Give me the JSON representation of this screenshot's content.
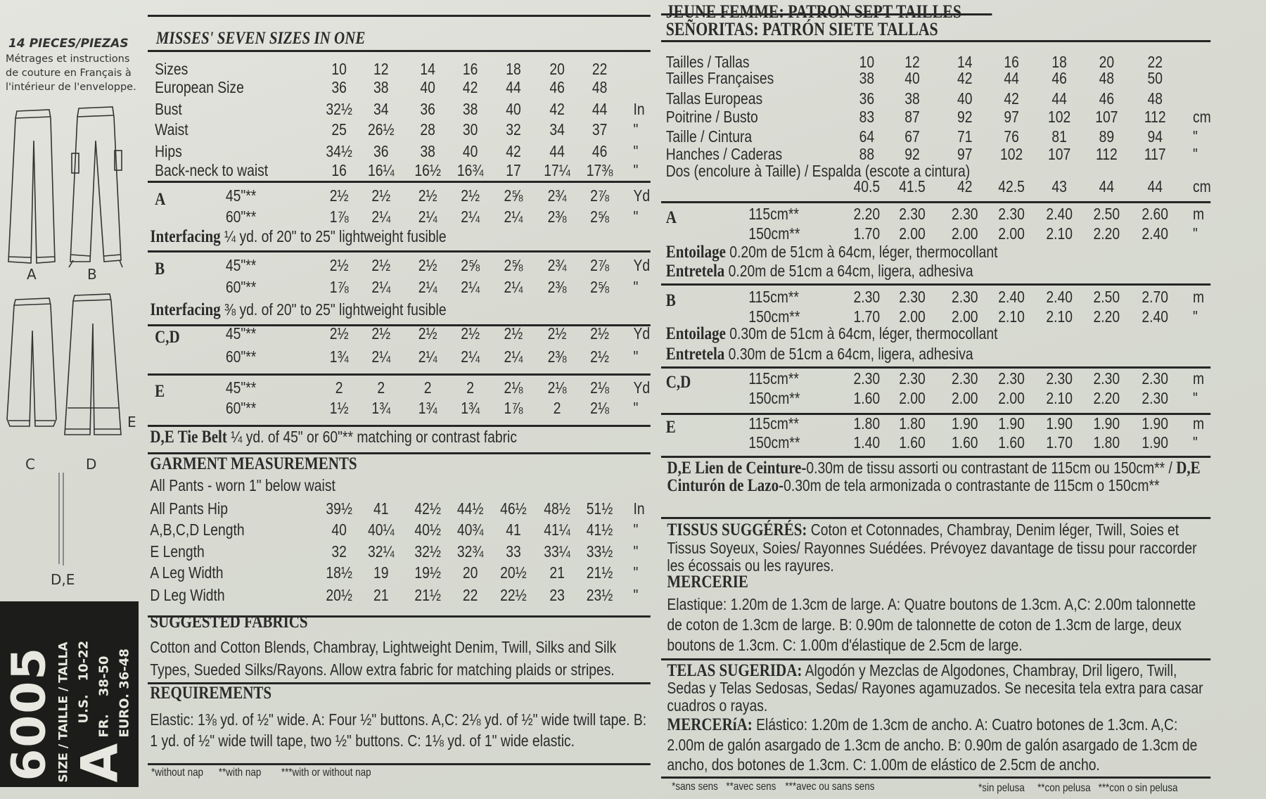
{
  "left_panel": {
    "pieces": "14 PIECES/PIEZAS",
    "note_lines": [
      "Métrages et instructions",
      "de couture en Français à",
      "l'intérieur de l'enveloppe."
    ],
    "view_labels": {
      "a": "A",
      "b": "B",
      "c": "C",
      "d": "D",
      "e": "E",
      "de": "D,E"
    },
    "pattern_number": "6005",
    "size_label": "SIZE / TAILLE / TALLA",
    "size_code": "A",
    "size_ranges": [
      {
        "label": "U.S.",
        "range": "10-22"
      },
      {
        "label": "FR.",
        "range": "38-50"
      },
      {
        "label": "EURO.",
        "range": "36-48"
      }
    ]
  },
  "english": {
    "title": "MISSES' SEVEN SIZES IN ONE",
    "body_measurements": [
      {
        "label": "Sizes",
        "values": [
          "10",
          "12",
          "14",
          "16",
          "18",
          "20",
          "22"
        ],
        "unit": ""
      },
      {
        "label": "European Size",
        "values": [
          "36",
          "38",
          "40",
          "42",
          "44",
          "46",
          "48"
        ],
        "unit": ""
      },
      {
        "label": "Bust",
        "values": [
          "32½",
          "34",
          "36",
          "38",
          "40",
          "42",
          "44"
        ],
        "unit": "In"
      },
      {
        "label": "Waist",
        "values": [
          "25",
          "26½",
          "28",
          "30",
          "32",
          "34",
          "37"
        ],
        "unit": "\""
      },
      {
        "label": "Hips",
        "values": [
          "34½",
          "36",
          "38",
          "40",
          "42",
          "44",
          "46"
        ],
        "unit": "\""
      },
      {
        "label": "Back-neck to waist",
        "values": [
          "16",
          "16¼",
          "16½",
          "16¾",
          "17",
          "17¼",
          "17⅜"
        ],
        "unit": "\""
      }
    ],
    "yardage": [
      {
        "view": "A",
        "rows": [
          {
            "width": "45\"**",
            "values": [
              "2½",
              "2½",
              "2½",
              "2½",
              "2⅝",
              "2¾",
              "2⅞"
            ],
            "unit": "Yd"
          },
          {
            "width": "60\"**",
            "values": [
              "1⅞",
              "2¼",
              "2¼",
              "2¼",
              "2¼",
              "2⅜",
              "2⅝"
            ],
            "unit": "\""
          }
        ],
        "interfacing": {
          "label": "Interfacing",
          "text": "¼ yd. of 20\" to 25\" lightweight fusible"
        }
      },
      {
        "view": "B",
        "rows": [
          {
            "width": "45\"**",
            "values": [
              "2½",
              "2½",
              "2½",
              "2⅝",
              "2⅝",
              "2¾",
              "2⅞"
            ],
            "unit": "Yd"
          },
          {
            "width": "60\"**",
            "values": [
              "1⅞",
              "2¼",
              "2¼",
              "2¼",
              "2¼",
              "2⅜",
              "2⅝"
            ],
            "unit": "\""
          }
        ],
        "interfacing": {
          "label": "Interfacing",
          "text": "⅜ yd. of 20\" to 25\" lightweight fusible"
        }
      },
      {
        "view": "C,D",
        "rows": [
          {
            "width": "45\"**",
            "values": [
              "2½",
              "2½",
              "2½",
              "2½",
              "2½",
              "2½",
              "2½"
            ],
            "unit": "Yd"
          },
          {
            "width": "60\"**",
            "values": [
              "1¾",
              "2¼",
              "2¼",
              "2¼",
              "2¼",
              "2⅜",
              "2½"
            ],
            "unit": "\""
          }
        ]
      },
      {
        "view": "E",
        "rows": [
          {
            "width": "45\"**",
            "values": [
              "2",
              "2",
              "2",
              "2",
              "2⅛",
              "2⅛",
              "2⅛"
            ],
            "unit": "Yd"
          },
          {
            "width": "60\"**",
            "values": [
              "1½",
              "1¾",
              "1¾",
              "1¾",
              "1⅞",
              "2",
              "2⅛"
            ],
            "unit": "\""
          }
        ]
      }
    ],
    "tie_belt": {
      "label": "D,E Tie Belt",
      "text": "¼ yd. of 45\" or 60\"** matching or contrast fabric"
    },
    "garment_measurements": {
      "title": "GARMENT MEASUREMENTS",
      "note": "All Pants - worn 1\" below waist",
      "rows": [
        {
          "label": "All Pants Hip",
          "values": [
            "39½",
            "41",
            "42½",
            "44½",
            "46½",
            "48½",
            "51½"
          ],
          "unit": "In"
        },
        {
          "label": "A,B,C,D Length",
          "values": [
            "40",
            "40¼",
            "40½",
            "40¾",
            "41",
            "41¼",
            "41½"
          ],
          "unit": "\""
        },
        {
          "label": "E Length",
          "values": [
            "32",
            "32¼",
            "32½",
            "32¾",
            "33",
            "33¼",
            "33½"
          ],
          "unit": "\""
        },
        {
          "label": "A Leg Width",
          "values": [
            "18½",
            "19",
            "19½",
            "20",
            "20½",
            "21",
            "21½"
          ],
          "unit": "\""
        },
        {
          "label": "D Leg Width",
          "values": [
            "20½",
            "21",
            "21½",
            "22",
            "22½",
            "23",
            "23½"
          ],
          "unit": "\""
        }
      ]
    },
    "suggested_fabrics": {
      "title": "SUGGESTED FABRICS",
      "text": "Cotton and Cotton Blends, Chambray, Lightweight Denim, Twill, Silks and Silk Types, Sueded Silks/Rayons. Allow extra fabric for matching plaids or stripes."
    },
    "requirements": {
      "title": "REQUIREMENTS",
      "text": "Elastic: 1⅜ yd. of ½\" wide. A: Four ½\" buttons. A,C: 2⅛ yd. of ½\" wide twill tape. B: 1 yd. of ½\" wide twill tape, two ½\" buttons. C: 1⅛ yd. of 1\" wide elastic."
    },
    "footnotes": [
      "*without nap",
      "**with nap",
      "***with or without nap"
    ]
  },
  "french_spanish": {
    "title_fr": "JEUNE FEMME: PATRON SEPT TAILLES",
    "title_es": "SEÑORITAS: PATRÓN SIETE TALLAS",
    "body_measurements": [
      {
        "label": "Tailles / Tallas",
        "values": [
          "10",
          "12",
          "14",
          "16",
          "18",
          "20",
          "22"
        ],
        "unit": ""
      },
      {
        "label": "Tailles Françaises",
        "values": [
          "38",
          "40",
          "42",
          "44",
          "46",
          "48",
          "50"
        ],
        "unit": ""
      },
      {
        "label": "Tallas Europeas",
        "values": [
          "36",
          "38",
          "40",
          "42",
          "44",
          "46",
          "48"
        ],
        "unit": ""
      },
      {
        "label": "Poitrine / Busto",
        "values": [
          "83",
          "87",
          "92",
          "97",
          "102",
          "107",
          "112"
        ],
        "unit": "cm"
      },
      {
        "label": "Taille / Cintura",
        "values": [
          "64",
          "67",
          "71",
          "76",
          "81",
          "89",
          "94"
        ],
        "unit": "\""
      },
      {
        "label": "Hanches / Caderas",
        "values": [
          "88",
          "92",
          "97",
          "102",
          "107",
          "112",
          "117"
        ],
        "unit": "\""
      }
    ],
    "back_length": {
      "label": "Dos (encolure à Taille) / Espalda (escote a cintura)",
      "values": [
        "40.5",
        "41.5",
        "42",
        "42.5",
        "43",
        "44",
        "44"
      ],
      "unit": "cm"
    },
    "yardage": [
      {
        "view": "A",
        "rows": [
          {
            "width": "115cm**",
            "values": [
              "2.20",
              "2.30",
              "2.30",
              "2.30",
              "2.40",
              "2.50",
              "2.60"
            ],
            "unit": "m"
          },
          {
            "width": "150cm**",
            "values": [
              "1.70",
              "2.00",
              "2.00",
              "2.00",
              "2.10",
              "2.20",
              "2.40"
            ],
            "unit": "\""
          }
        ],
        "interfacing": [
          {
            "label": "Entoilage",
            "text": "0.20m de 51cm à 64cm, léger, thermocollant"
          },
          {
            "label": "Entretela",
            "text": "0.20m de 51cm a 64cm, ligera, adhesiva"
          }
        ]
      },
      {
        "view": "B",
        "rows": [
          {
            "width": "115cm**",
            "values": [
              "2.30",
              "2.30",
              "2.30",
              "2.40",
              "2.40",
              "2.50",
              "2.70"
            ],
            "unit": "m"
          },
          {
            "width": "150cm**",
            "values": [
              "1.70",
              "2.00",
              "2.00",
              "2.10",
              "2.10",
              "2.20",
              "2.40"
            ],
            "unit": "\""
          }
        ],
        "interfacing": [
          {
            "label": "Entoilage",
            "text": "0.30m de 51cm à 64cm, léger, thermocollant"
          },
          {
            "label": "Entretela",
            "text": "0.30m de 51cm a 64cm, ligera, adhesiva"
          }
        ]
      },
      {
        "view": "C,D",
        "rows": [
          {
            "width": "115cm**",
            "values": [
              "2.30",
              "2.30",
              "2.30",
              "2.30",
              "2.30",
              "2.30",
              "2.30"
            ],
            "unit": "m"
          },
          {
            "width": "150cm**",
            "values": [
              "1.60",
              "2.00",
              "2.00",
              "2.00",
              "2.10",
              "2.20",
              "2.30"
            ],
            "unit": "\""
          }
        ]
      },
      {
        "view": "E",
        "rows": [
          {
            "width": "115cm**",
            "values": [
              "1.80",
              "1.80",
              "1.90",
              "1.90",
              "1.90",
              "1.90",
              "1.90"
            ],
            "unit": "m"
          },
          {
            "width": "150cm**",
            "values": [
              "1.40",
              "1.60",
              "1.60",
              "1.60",
              "1.70",
              "1.80",
              "1.90"
            ],
            "unit": "\""
          }
        ]
      }
    ],
    "tie_belt": [
      {
        "bold": "D,E Lien de Ceinture-",
        "text": "0.30m de tissu assorti ou contrastant de 115cm ou 150cm** / "
      },
      {
        "bold": "D,E Cinturón de Lazo-",
        "text": "0.30m de tela armonizada o contrastante de 115cm o 150cm**"
      }
    ],
    "tissus": {
      "title": "TISSUS SUGGÉRÉS:",
      "text": "Coton et Cotonnades, Chambray, Denim léger, Twill, Soies et Tissus Soyeux, Soies/ Rayonnes Suédées. Prévoyez davantage de tissu pour raccorder les écossais ou les rayures."
    },
    "mercerie": {
      "title": "MERCERIE",
      "text": "Elastique: 1.20m de 1.3cm de large. A: Quatre boutons de 1.3cm. A,C: 2.00m talonnette de coton de 1.3cm de large. B: 0.90m de talonnette de coton de 1.3cm de large, deux boutons de 1.3cm. C: 1.00m d'élastique de 2.5cm de large."
    },
    "telas": {
      "title": "TELAS SUGERIDA:",
      "text": "Algodón y Mezclas de Algodones, Chambray, Dril ligero, Twill, Sedas y Telas Sedosas, Sedas/ Rayones agamuzados. Se necesita tela extra para casar cuadros o rayas."
    },
    "merceria": {
      "title": "MERCERíA:",
      "text": "Elástico: 1.20m de 1.3cm de ancho. A: Cuatro botones de 1.3cm. A,C: 2.00m de galón asargado de 1.3cm de ancho. B: 0.90m de galón asargado de 1.3cm de ancho, dos botones de 1.3cm. C: 1.00m de elástico de 2.5cm de ancho."
    },
    "footnotes_fr": [
      "*sans sens",
      "**avec sens",
      "***avec ou sans sens"
    ],
    "footnotes_es": [
      "*sin pelusa",
      "**con pelusa",
      "***con o sin pelusa"
    ]
  }
}
